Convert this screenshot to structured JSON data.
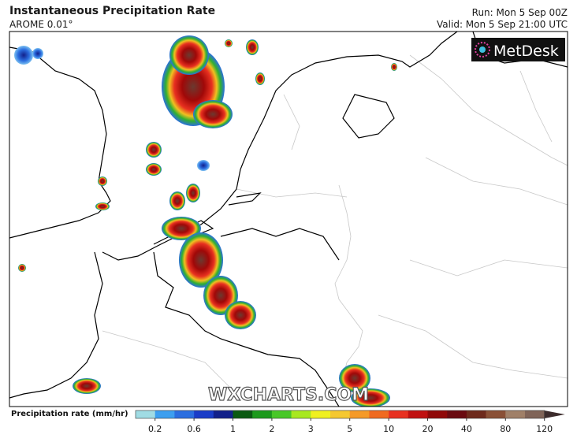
{
  "header": {
    "title": "Instantaneous Precipitation Rate",
    "model": "AROME 0.01°",
    "run": "Run: Mon 5 Sep 00Z",
    "valid": "Valid: Mon 5 Sep 21:00 UTC"
  },
  "logo": "MetDesk",
  "watermark": "WXCHARTS.COM",
  "colorbar": {
    "label": "Precipitation rate (mm/hr)",
    "ticks": [
      "0.2",
      "0.6",
      "1",
      "2",
      "3",
      "5",
      "10",
      "20",
      "40",
      "80",
      "120"
    ],
    "colors": [
      "#a0dce4",
      "#3c9ff0",
      "#2b6ee0",
      "#1a3cc8",
      "#12208a",
      "#0b5a12",
      "#1c9a1c",
      "#48c828",
      "#a8e820",
      "#f0f020",
      "#f5c830",
      "#f59a28",
      "#f06a20",
      "#e83020",
      "#c01010",
      "#900808",
      "#6a0a10",
      "#6e2a1c",
      "#8a5036",
      "#a08068",
      "#806458"
    ],
    "arrow_color": "#3c2c2c"
  }
}
